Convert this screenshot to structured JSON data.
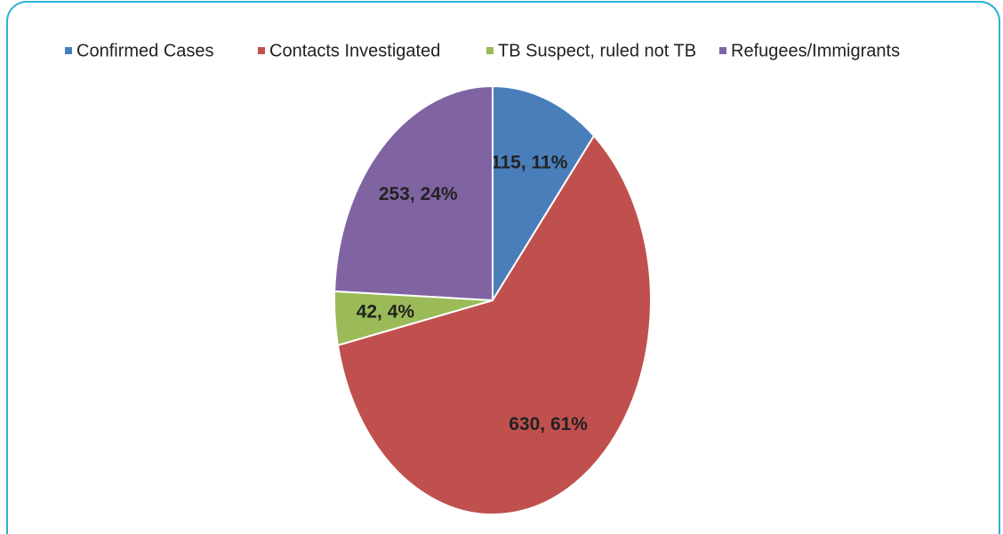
{
  "chart_data": {
    "type": "pie",
    "categories": [
      "Confirmed Cases",
      "Contacts Investigated",
      "TB Suspect, ruled not TB",
      "Refugees/Immigrants"
    ],
    "values": [
      115,
      630,
      42,
      253
    ],
    "value_labels": [
      "115, 11%",
      "630, 61%",
      "42, 4%",
      "253, 24%"
    ],
    "colors": [
      "#4a7ebb",
      "#c0504d",
      "#9bbb59",
      "#8064a2"
    ],
    "legend": "top"
  }
}
